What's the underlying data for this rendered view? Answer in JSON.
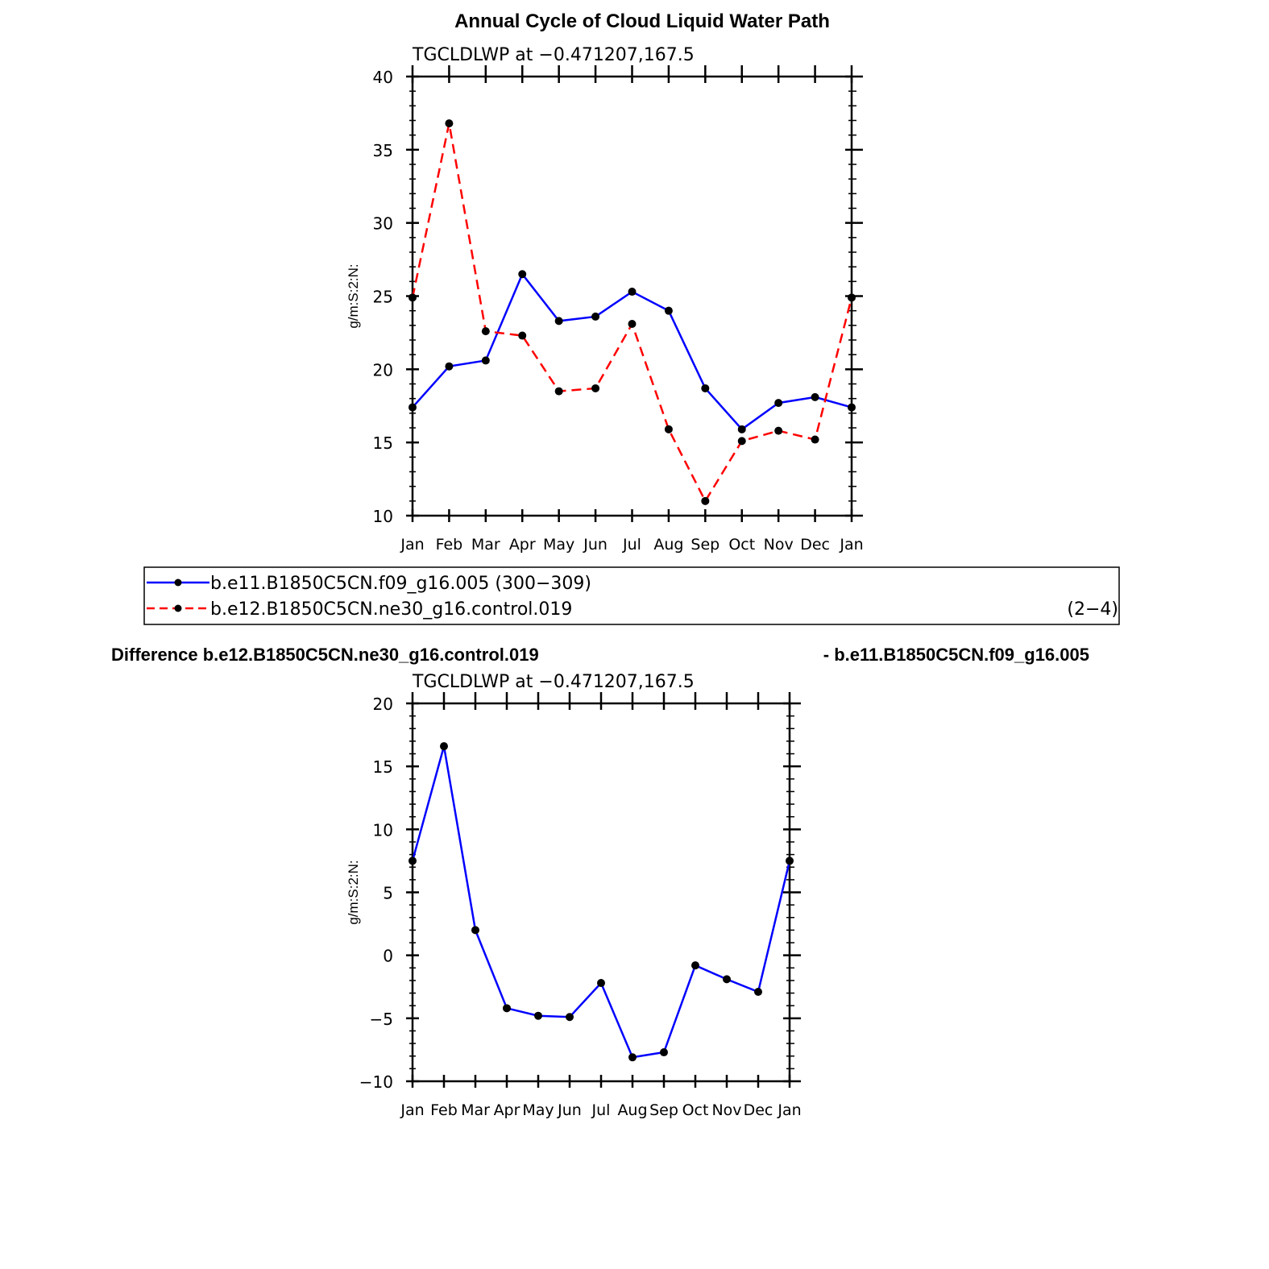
{
  "figure": {
    "title": "Annual Cycle of Cloud Liquid Water Path",
    "diff_title_left": "Difference b.e12.B1850C5CN.ne30_g16.control.019",
    "diff_title_right": "- b.e11.B1850C5CN.f09_g16.005"
  },
  "legend": {
    "entries": [
      {
        "label": "b.e11.B1850C5CN.f09_g16.005 (300−309)",
        "color": "#0000ff",
        "style": "solid"
      },
      {
        "label": "b.e12.B1850C5CN.ne30_g16.control.019",
        "color": "#ff0000",
        "style": "dashed"
      }
    ],
    "note": "(2−4)"
  },
  "chart_data": [
    {
      "type": "line",
      "subtitle": "TGCLDLWP at −0.471207,167.5",
      "ylabel": "g/m:S:2:N:",
      "xlabel": "",
      "categories": [
        "Jan",
        "Feb",
        "Mar",
        "Apr",
        "May",
        "Jun",
        "Jul",
        "Aug",
        "Sep",
        "Oct",
        "Nov",
        "Dec",
        "Jan"
      ],
      "ylim": [
        10,
        40
      ],
      "yticks": [
        "10",
        "15",
        "20",
        "25",
        "30",
        "35",
        "40"
      ],
      "series": [
        {
          "name": "b.e11.B1850C5CN.f09_g16.005 (300−309)",
          "color": "#0000ff",
          "style": "solid",
          "values": [
            17.4,
            20.2,
            20.6,
            26.5,
            23.3,
            23.6,
            25.3,
            24.0,
            18.7,
            15.9,
            17.7,
            18.1,
            17.4
          ]
        },
        {
          "name": "b.e12.B1850C5CN.ne30_g16.control.019",
          "color": "#ff0000",
          "style": "dashed",
          "values": [
            24.9,
            36.8,
            22.6,
            22.3,
            18.5,
            18.7,
            23.1,
            15.9,
            11.0,
            15.1,
            15.8,
            15.2,
            24.9
          ]
        }
      ],
      "grid": false
    },
    {
      "type": "line",
      "subtitle": "TGCLDLWP at −0.471207,167.5",
      "ylabel": "g/m:S:2:N:",
      "xlabel": "",
      "categories": [
        "Jan",
        "Feb",
        "Mar",
        "Apr",
        "May",
        "Jun",
        "Jul",
        "Aug",
        "Sep",
        "Oct",
        "Nov",
        "Dec",
        "Jan"
      ],
      "ylim": [
        -10,
        20
      ],
      "yticks": [
        "−10",
        "−5",
        "0",
        "5",
        "10",
        "15",
        "20"
      ],
      "series": [
        {
          "color": "#0000ff",
          "style": "solid",
          "values": [
            7.5,
            16.6,
            2.0,
            -4.2,
            -4.8,
            -4.9,
            -2.2,
            -8.1,
            -7.7,
            -0.8,
            -1.9,
            -2.9,
            7.5
          ]
        }
      ],
      "grid": false
    }
  ]
}
